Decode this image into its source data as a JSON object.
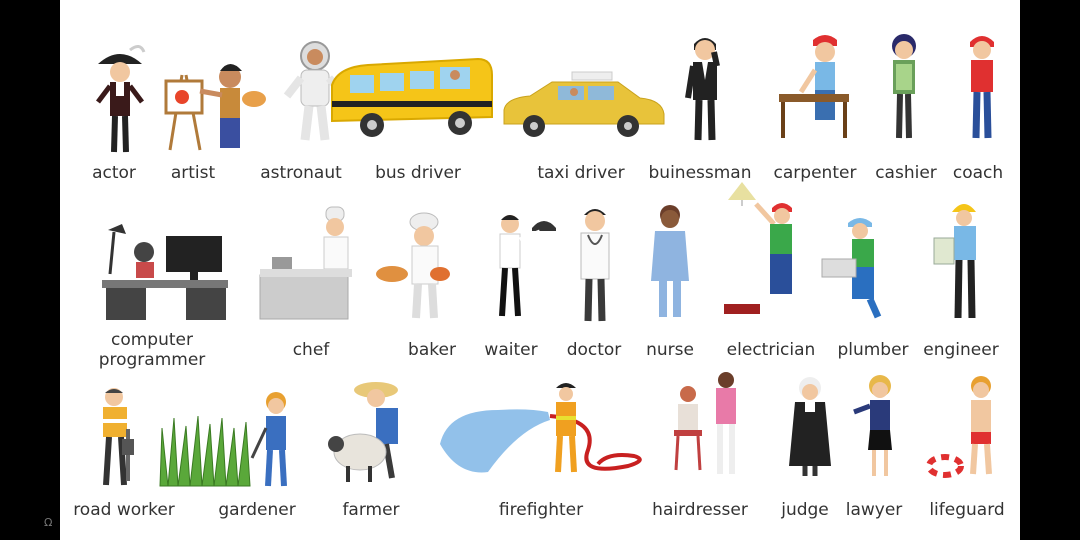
{
  "professions": [
    {
      "label": "actor"
    },
    {
      "label": "artist"
    },
    {
      "label": "astronaut"
    },
    {
      "label": "bus driver"
    },
    {
      "label": "taxi driver"
    },
    {
      "label": "buinessman"
    },
    {
      "label": "carpenter"
    },
    {
      "label": "cashier"
    },
    {
      "label": "coach"
    },
    {
      "label": "computer programmer"
    },
    {
      "label": "chef"
    },
    {
      "label": "baker"
    },
    {
      "label": "waiter"
    },
    {
      "label": "doctor"
    },
    {
      "label": "nurse"
    },
    {
      "label": "electrician"
    },
    {
      "label": "plumber"
    },
    {
      "label": "engineer"
    },
    {
      "label": "road worker"
    },
    {
      "label": "gardener"
    },
    {
      "label": "farmer"
    },
    {
      "label": "firefighter"
    },
    {
      "label": "hairdresser"
    },
    {
      "label": "judge"
    },
    {
      "label": "lawyer"
    },
    {
      "label": "lifeguard"
    }
  ],
  "colors": {
    "background": "#ffffff",
    "frame": "#000000",
    "text": "#333333",
    "bus": "#f5c518",
    "taxi": "#e8c33a",
    "hose_water": "#7fb6e6"
  },
  "corner_icon": "headphones-icon"
}
